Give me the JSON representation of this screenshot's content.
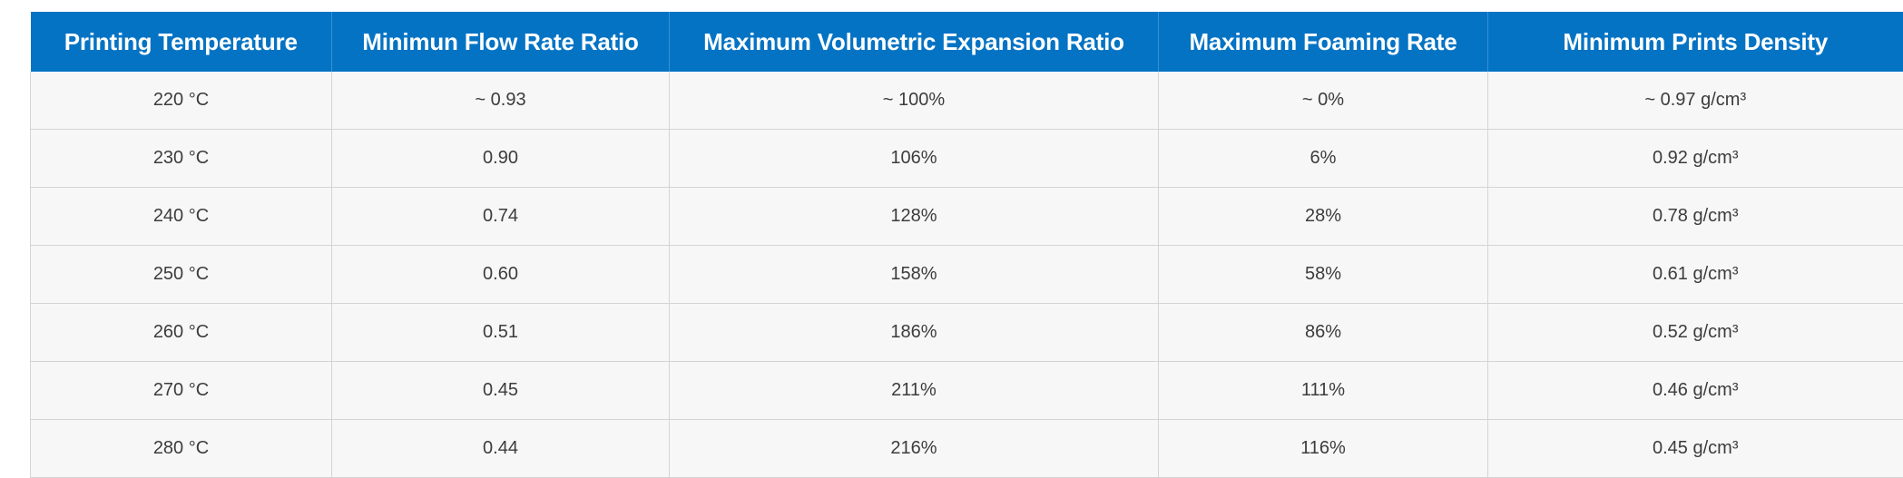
{
  "table": {
    "headers": [
      "Printing Temperature",
      "Minimun Flow Rate Ratio",
      "Maximum Volumetric Expansion Ratio",
      "Maximum Foaming Rate",
      "Minimum Prints Density"
    ],
    "rows": [
      [
        "220 °C",
        "~ 0.93",
        "~ 100%",
        "~ 0%",
        "~ 0.97 g/cm³"
      ],
      [
        "230 °C",
        "0.90",
        "106%",
        "6%",
        "0.92 g/cm³"
      ],
      [
        "240 °C",
        "0.74",
        "128%",
        "28%",
        "0.78 g/cm³"
      ],
      [
        "250 °C",
        "0.60",
        "158%",
        "58%",
        "0.61 g/cm³"
      ],
      [
        "260 °C",
        "0.51",
        "186%",
        "86%",
        "0.52 g/cm³"
      ],
      [
        "270 °C",
        "0.45",
        "211%",
        "111%",
        "0.46 g/cm³"
      ],
      [
        "280 °C",
        "0.44",
        "216%",
        "116%",
        "0.45 g/cm³"
      ]
    ]
  },
  "colors": {
    "header_background": "#0473c4",
    "header_text": "#ffffff",
    "cell_background": "#f7f7f8",
    "cell_text": "#3c3c3c",
    "border": "#d4d4d4"
  }
}
